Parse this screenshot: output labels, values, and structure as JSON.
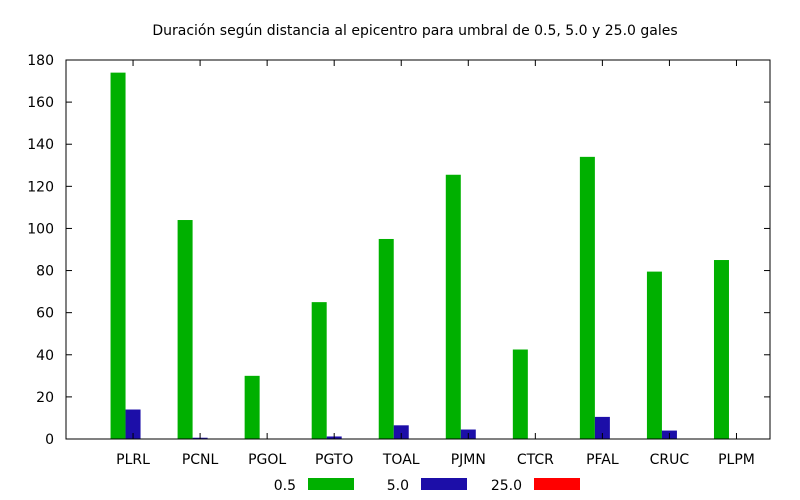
{
  "chart_data": {
    "type": "bar",
    "title": "Duración según distancia al epicentro para umbral de 0.5, 5.0 y 25.0 gales",
    "xlabel": "",
    "ylabel": "",
    "ylim": [
      0,
      180
    ],
    "yticks": [
      0,
      20,
      40,
      60,
      80,
      100,
      120,
      140,
      160,
      180
    ],
    "grid": false,
    "legend_position": "bottom",
    "categories": [
      "PLRL",
      "PCNL",
      "PGOL",
      "PGTO",
      "TOAL",
      "PJMN",
      "CTCR",
      "PFAL",
      "CRUC",
      "PLPM"
    ],
    "series": [
      {
        "name": "0.5",
        "color": "#00b000",
        "values": [
          174,
          104,
          30,
          65,
          95,
          125.5,
          42.5,
          134,
          79.5,
          85
        ]
      },
      {
        "name": "5.0",
        "color": "#1c0ea8",
        "values": [
          14,
          0.6,
          0,
          1.2,
          6.5,
          4.5,
          0,
          10.5,
          4,
          0
        ]
      },
      {
        "name": "25.0",
        "color": "#ff0000",
        "values": [
          0,
          0,
          0,
          0,
          0,
          0,
          0,
          0,
          0,
          0
        ]
      }
    ]
  }
}
